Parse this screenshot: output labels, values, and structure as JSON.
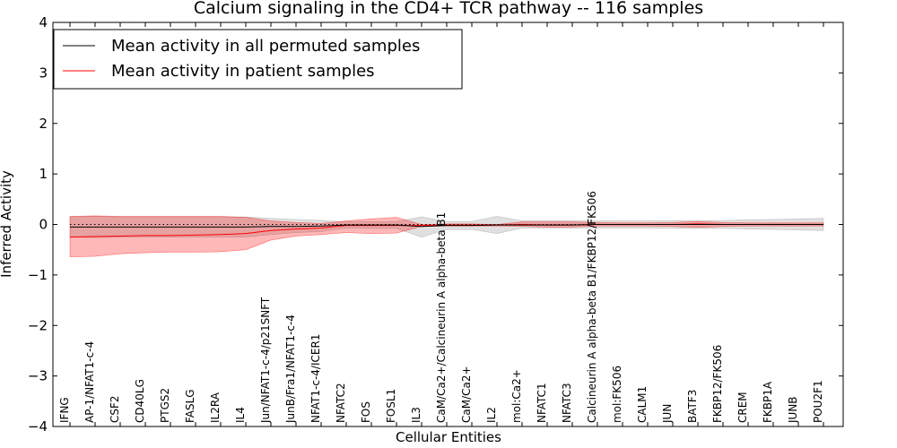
{
  "chart_data": {
    "type": "line",
    "title": "Calcium signaling in the CD4+ TCR pathway -- 116 samples",
    "xlabel": "Cellular Entities",
    "ylabel": "Inferred Activity",
    "ylim": [
      -4,
      4
    ],
    "yticks": [
      -4,
      -3,
      -2,
      -1,
      0,
      1,
      2,
      3,
      4
    ],
    "ytick_labels": [
      "−4",
      "−3",
      "−2",
      "−1",
      "0",
      "1",
      "2",
      "3",
      "4"
    ],
    "grid": false,
    "legend_position": "top-left",
    "reference_line": {
      "y": 0,
      "style": "dotted",
      "color": "#000000"
    },
    "categories": [
      "IFNG",
      "AP-1/NFAT1-c-4",
      "CSF2",
      "CD40LG",
      "PTGS2",
      "FASLG",
      "IL2RA",
      "IL4",
      "Jun/NFAT1-c-4/p21SNFT",
      "JunB/Fra1/NFAT1-c-4",
      "NFAT1-c-4/ICER1",
      "NFATC2",
      "FOS",
      "FOSL1",
      "IL3",
      "CaM/Ca2+/Calcineurin A alpha-beta B1",
      "CaM/Ca2+",
      "IL2",
      "mol:Ca2+",
      "NFATC1",
      "NFATC3",
      "Calcineurin A alpha-beta B1/FKBP12/FK506",
      "mol:FK506",
      "CALM1",
      "JUN",
      "BATF3",
      "FKBP12/FK506",
      "CREM",
      "FKBP1A",
      "JUNB",
      "POU2F1"
    ],
    "series": [
      {
        "name": "Mean activity in all permuted samples",
        "color": "#000000",
        "band_color": "#bbbbbb",
        "values": [
          -0.05,
          -0.05,
          -0.05,
          -0.05,
          -0.05,
          -0.05,
          -0.05,
          -0.05,
          -0.04,
          -0.04,
          -0.03,
          -0.01,
          -0.01,
          -0.01,
          -0.04,
          -0.02,
          -0.02,
          -0.01,
          -0.01,
          -0.01,
          -0.01,
          0.0,
          0.0,
          0.0,
          0.0,
          0.0,
          0.0,
          0.0,
          0.0,
          0.0,
          0.0
        ],
        "band_upper": [
          0.15,
          0.16,
          0.15,
          0.15,
          0.15,
          0.15,
          0.15,
          0.15,
          0.12,
          0.1,
          0.08,
          0.05,
          0.06,
          0.06,
          0.15,
          0.06,
          0.06,
          0.16,
          0.07,
          0.07,
          0.07,
          0.07,
          0.07,
          0.07,
          0.08,
          0.08,
          0.08,
          0.09,
          0.1,
          0.11,
          0.12
        ],
        "band_lower": [
          -0.25,
          -0.26,
          -0.25,
          -0.25,
          -0.25,
          -0.25,
          -0.25,
          -0.25,
          -0.2,
          -0.16,
          -0.14,
          -0.07,
          -0.08,
          -0.08,
          -0.25,
          -0.1,
          -0.1,
          -0.18,
          -0.07,
          -0.07,
          -0.07,
          -0.07,
          -0.07,
          -0.07,
          -0.08,
          -0.08,
          -0.08,
          -0.09,
          -0.1,
          -0.11,
          -0.12
        ]
      },
      {
        "name": "Mean activity in patient samples",
        "color": "#ff0000",
        "band_color": "#ff0000",
        "values": [
          -0.25,
          -0.24,
          -0.23,
          -0.22,
          -0.22,
          -0.21,
          -0.2,
          -0.18,
          -0.12,
          -0.09,
          -0.07,
          -0.02,
          -0.02,
          -0.02,
          -0.02,
          -0.01,
          -0.01,
          -0.01,
          0.0,
          -0.01,
          -0.01,
          0.0,
          0.0,
          0.0,
          0.0,
          0.01,
          0.0,
          0.0,
          0.0,
          0.0,
          0.0
        ],
        "band_upper": [
          0.16,
          0.17,
          0.16,
          0.16,
          0.16,
          0.16,
          0.16,
          0.14,
          0.07,
          0.04,
          0.02,
          0.07,
          0.11,
          0.14,
          0.0,
          0.01,
          0.01,
          0.0,
          0.05,
          0.05,
          0.05,
          0.04,
          0.03,
          0.03,
          0.04,
          0.06,
          0.04,
          0.03,
          0.03,
          0.03,
          0.03
        ],
        "band_lower": [
          -0.64,
          -0.63,
          -0.58,
          -0.56,
          -0.55,
          -0.55,
          -0.54,
          -0.5,
          -0.31,
          -0.23,
          -0.2,
          -0.16,
          -0.18,
          -0.17,
          -0.04,
          -0.03,
          -0.03,
          -0.03,
          -0.04,
          -0.05,
          -0.05,
          -0.03,
          -0.03,
          -0.03,
          -0.04,
          -0.06,
          -0.04,
          -0.03,
          -0.03,
          -0.03,
          -0.03
        ]
      }
    ]
  }
}
